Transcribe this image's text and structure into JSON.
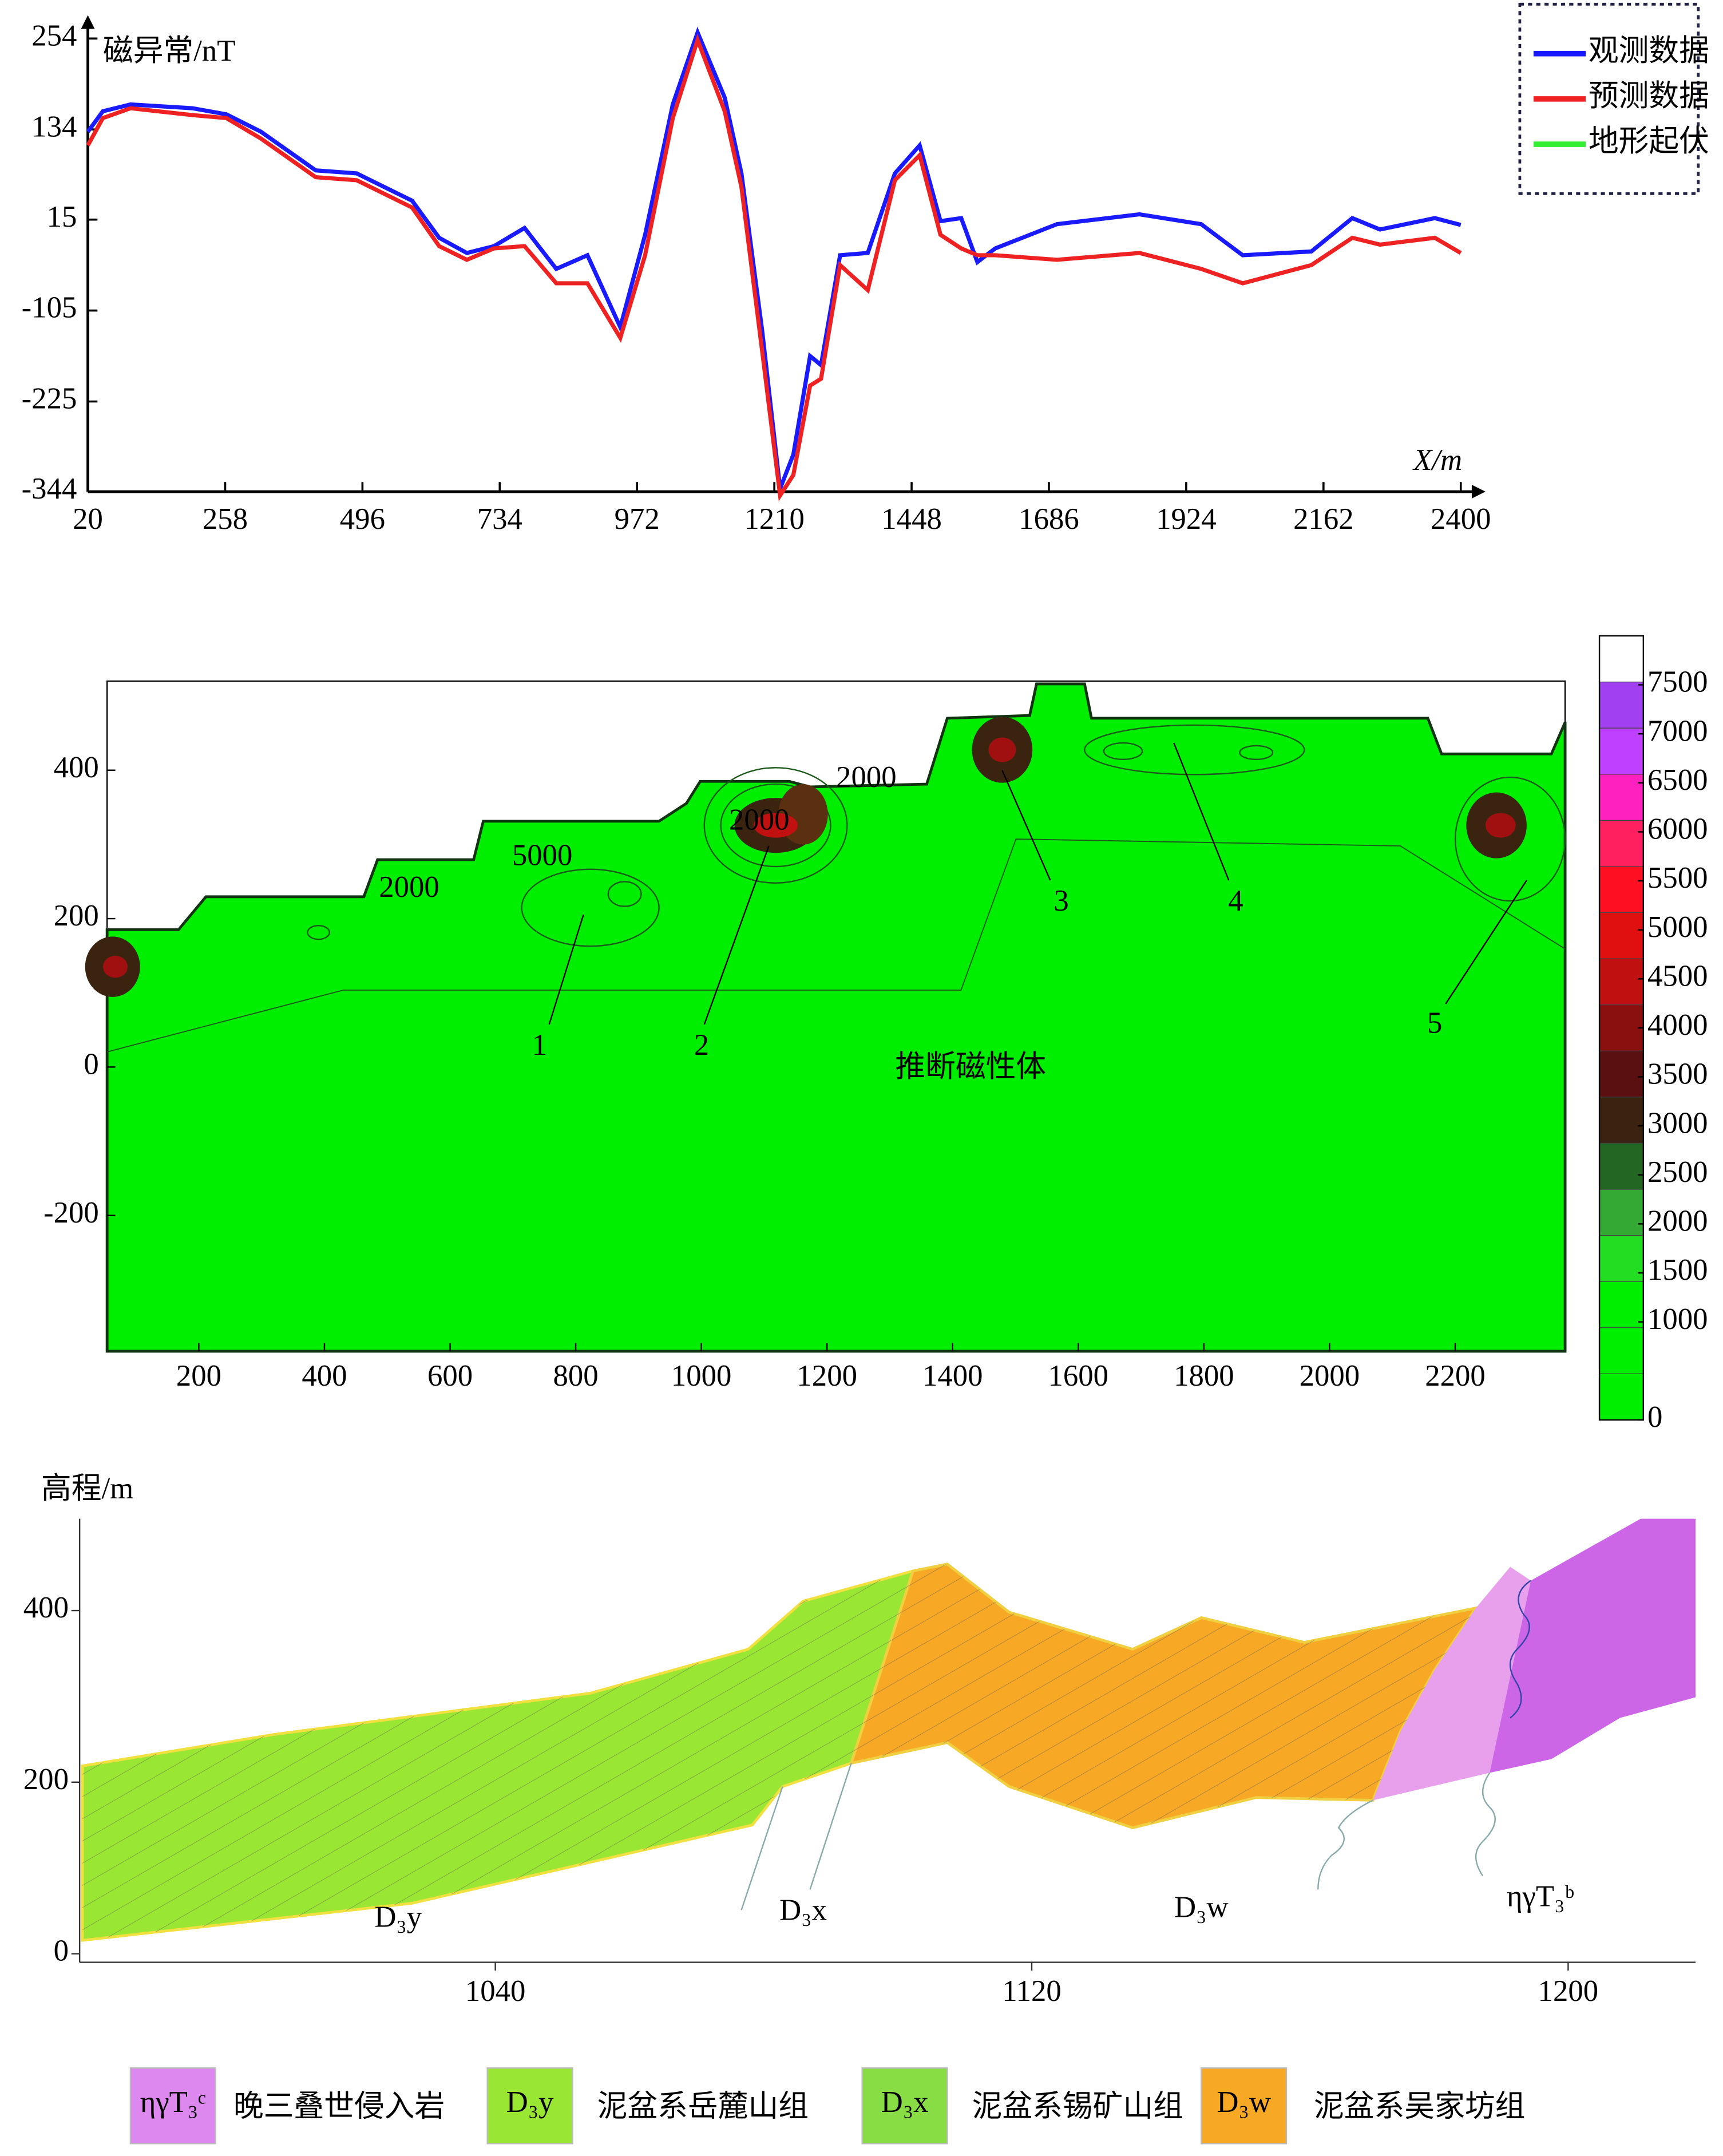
{
  "chart_data": [
    {
      "type": "line",
      "ylabel": "磁异常/nT",
      "xlabel": "X/m",
      "x": [
        20,
        46,
        94,
        201,
        260,
        320,
        415,
        486,
        582,
        629,
        677,
        724,
        777,
        832,
        886,
        943,
        986,
        1034,
        1077,
        1124,
        1153,
        1189,
        1220,
        1243,
        1272,
        1291,
        1324,
        1372,
        1419,
        1462,
        1498,
        1534,
        1562,
        1593,
        1700,
        1843,
        1950,
        2022,
        2141,
        2212,
        2260,
        2355,
        2400
      ],
      "series": [
        {
          "name": "观测数据",
          "color": "#1a1aff",
          "values": [
            131,
            158,
            167,
            162,
            154,
            131,
            80,
            76,
            40,
            -9,
            -29,
            -20,
            4,
            -50,
            -32,
            -127,
            -5,
            167,
            262,
            176,
            76,
            -132,
            -340,
            -295,
            -165,
            -177,
            -32,
            -29,
            76,
            113,
            13,
            17,
            -41,
            -23,
            9,
            22,
            9,
            -32,
            -27,
            17,
            2,
            17,
            8
          ]
        },
        {
          "name": "预测数据",
          "color": "#ee2222",
          "values": [
            113,
            149,
            162,
            153,
            149,
            122,
            71,
            67,
            31,
            -20,
            -38,
            -23,
            -20,
            -69,
            -69,
            -141,
            -32,
            149,
            252,
            158,
            58,
            -159,
            -349,
            -322,
            -204,
            -195,
            -45,
            -78,
            67,
            100,
            -5,
            -23,
            -32,
            -32,
            -38,
            -29,
            -50,
            -69,
            -45,
            -9,
            -18,
            -9,
            -29
          ]
        },
        {
          "name": "地形起伏",
          "color": "#33ee33",
          "values": [
            null,
            null,
            null,
            null,
            null,
            null,
            null,
            null,
            null,
            null,
            null,
            null,
            null,
            null,
            null,
            null,
            null,
            null,
            null,
            null,
            null,
            null,
            null,
            null,
            null,
            null,
            null,
            null,
            null,
            null,
            null,
            null,
            null,
            null,
            null,
            null,
            null,
            null,
            null,
            null,
            null,
            null,
            null
          ]
        }
      ],
      "xlim": [
        20,
        2400
      ],
      "xticks": [
        20,
        258,
        496,
        734,
        972,
        1210,
        1448,
        1686,
        1924,
        2162,
        2400
      ],
      "ylim": [
        -344,
        254
      ],
      "yticks": [
        -344,
        -225,
        -105,
        15,
        134,
        254
      ],
      "legend": "upper right"
    },
    {
      "type": "contour",
      "xlim": [
        54,
        2375
      ],
      "xticks": [
        200,
        400,
        600,
        800,
        1000,
        1200,
        1400,
        1600,
        1800,
        2000,
        2200
      ],
      "ylim": [
        -383,
        520
      ],
      "yticks": [
        -200,
        0,
        200,
        400
      ],
      "colorbar": {
        "lim": [
          0,
          8000
        ],
        "ticks": [
          0,
          1000,
          1500,
          2000,
          2500,
          3000,
          3500,
          4000,
          4500,
          5000,
          5500,
          6000,
          6500,
          7000,
          7500
        ],
        "colors": [
          "#00ee00",
          "#00ee00",
          "#00ee00",
          "#22dd22",
          "#33aa33",
          "#226622",
          "#3a2410",
          "#5a1010",
          "#8a1010",
          "#c01010",
          "#e01010",
          "#ff1020",
          "#ff2060",
          "#ff20c0",
          "#c040ff",
          "#a040f0",
          "#ffffff"
        ]
      },
      "contour_labels": [
        "2000",
        "5000",
        "2000",
        "2000"
      ],
      "annotations": [
        "1",
        "2",
        "3",
        "4",
        "5",
        "推断磁性体"
      ]
    },
    {
      "type": "section",
      "ylabel": "高程/m",
      "xlim": [
        978,
        1219
      ],
      "xticks": [
        1040,
        1120,
        1200
      ],
      "ylim": [
        -10,
        507
      ],
      "yticks": [
        0,
        200,
        400
      ],
      "labels": [
        "D₃y",
        "D₃x",
        "D₃w",
        "ηγT₃ᵇ"
      ],
      "units": [
        {
          "code": "ηγT₃ᶜ",
          "name": "晚三叠世侵入岩",
          "color": "#dd88ee"
        },
        {
          "code": "D₃y",
          "name": "泥盆系岳麓山组",
          "color": "#99e633"
        },
        {
          "code": "D₃x",
          "name": "泥盆系锡矿山组",
          "color": "#88dd44"
        },
        {
          "code": "D₃w",
          "name": "泥盆系吴家坊组",
          "color": "#f7a825"
        }
      ]
    }
  ]
}
